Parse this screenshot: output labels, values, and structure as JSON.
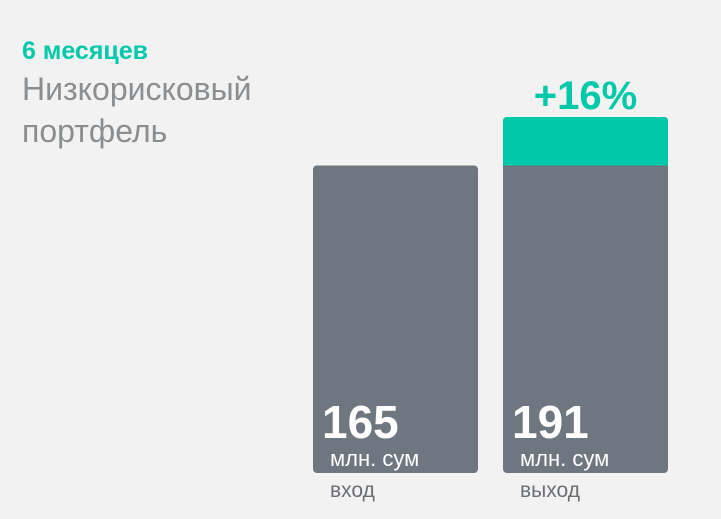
{
  "header": {
    "period": "6 месяцев",
    "portfolio": "Низкорисковый портфель"
  },
  "colors": {
    "accent": "#00c9aa",
    "bar": "#6e7680",
    "background": "#f2f2f2"
  },
  "chart_data": {
    "type": "bar",
    "categories": [
      "вход",
      "выход"
    ],
    "values": [
      165,
      191
    ],
    "unit": "млн. сум",
    "growth_label": "+16%",
    "ylim": [
      0,
      191
    ],
    "grid": false
  }
}
